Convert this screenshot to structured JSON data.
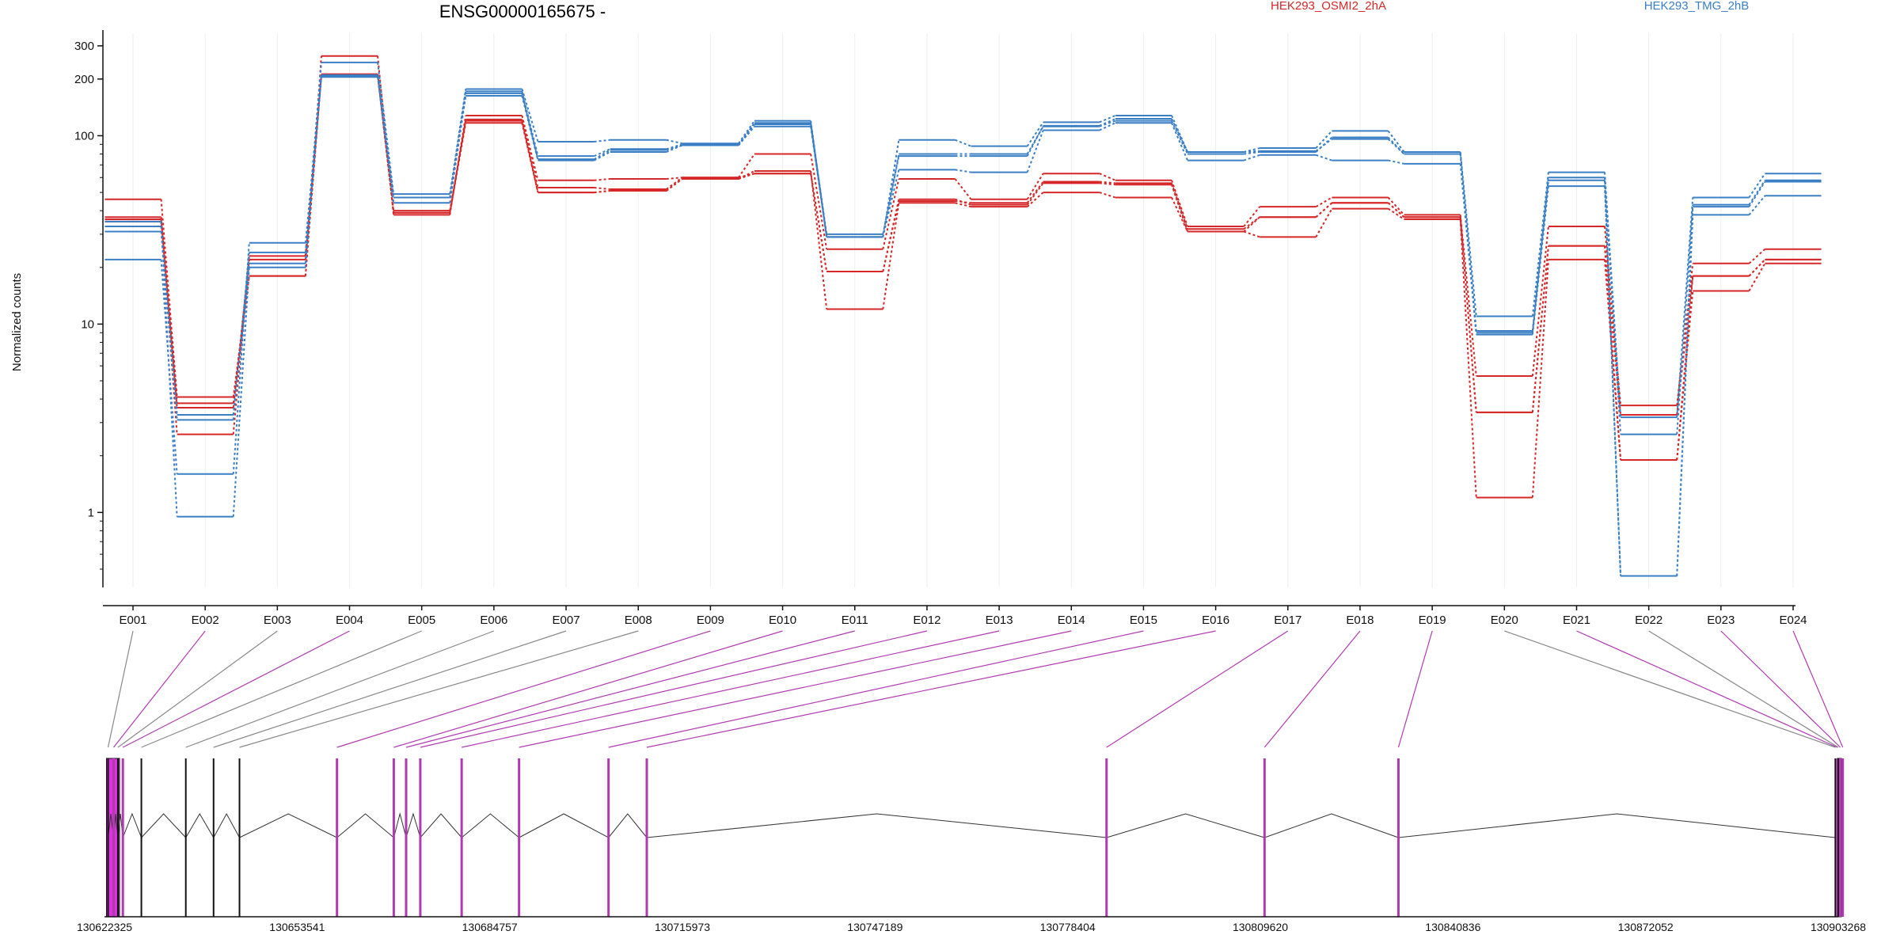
{
  "chart_data": {
    "type": "line",
    "title": "ENSG00000165675 -",
    "ylabel": "Normalized counts",
    "y_scale": "log",
    "ylim": [
      0.4,
      350
    ],
    "y_ticks": [
      {
        "value": 1,
        "label": "1"
      },
      {
        "value": 10,
        "label": "10"
      },
      {
        "value": 100,
        "label": "100"
      },
      {
        "value": 200,
        "label": "200"
      },
      {
        "value": 300,
        "label": "300"
      }
    ],
    "categories": [
      "E001",
      "E002",
      "E003",
      "E004",
      "E005",
      "E006",
      "E007",
      "E008",
      "E009",
      "E010",
      "E011",
      "E012",
      "E013",
      "E014",
      "E015",
      "E016",
      "E017",
      "E018",
      "E019",
      "E020",
      "E021",
      "E022",
      "E023",
      "E024"
    ],
    "legend": [
      {
        "label": "HEK293_OSMI2_2hA",
        "color": "#d62728"
      },
      {
        "label": "HEK293_TMG_2hB",
        "color": "#3a7fc4"
      }
    ],
    "grid": "vertical",
    "series": [
      {
        "group": "HEK293_OSMI2_2hA",
        "color": "#d62728",
        "values": [
          46,
          4.1,
          18,
          265,
          38,
          128,
          58,
          59,
          60,
          80,
          25,
          59,
          46,
          63,
          58,
          33,
          42,
          47,
          38,
          5.3,
          33,
          3.7,
          21,
          25
        ]
      },
      {
        "group": "HEK293_OSMI2_2hA",
        "color": "#d62728",
        "values": [
          37,
          3.8,
          18,
          212,
          39,
          122,
          53,
          52,
          60,
          63,
          19,
          45,
          44,
          57,
          56,
          32,
          37,
          44,
          37,
          3.4,
          26,
          3.3,
          18,
          22
        ]
      },
      {
        "group": "HEK293_OSMI2_2hA",
        "color": "#d62728",
        "values": [
          36,
          3.6,
          22,
          212,
          39,
          117,
          50,
          51,
          59,
          65,
          12,
          44,
          42,
          50,
          47,
          31,
          29,
          41,
          36,
          1.2,
          22,
          1.9,
          15,
          21
        ]
      },
      {
        "group": "HEK293_OSMI2_2hA",
        "color": "#d62728",
        "values": [
          35,
          2.6,
          23,
          208,
          40,
          120,
          50,
          51,
          59,
          63,
          19,
          46,
          43,
          56,
          55,
          31,
          37,
          44,
          37,
          3.4,
          26,
          1.9,
          18,
          22
        ]
      },
      {
        "group": "HEK293_TMG_2hB",
        "color": "#3a7fc4",
        "values": [
          31,
          3.1,
          24,
          245,
          49,
          177,
          93,
          95,
          91,
          120,
          29,
          95,
          88,
          118,
          128,
          82,
          86,
          106,
          82,
          11,
          64,
          3.2,
          47,
          63
        ]
      },
      {
        "group": "HEK293_TMG_2hB",
        "color": "#3a7fc4",
        "values": [
          22,
          1.6,
          27,
          208,
          47,
          168,
          75,
          84,
          89,
          117,
          30,
          78,
          78,
          113,
          123,
          82,
          83,
          96,
          80,
          9,
          60,
          2.6,
          42,
          57
        ]
      },
      {
        "group": "HEK293_TMG_2hB",
        "color": "#3a7fc4",
        "values": [
          35,
          0.95,
          20,
          205,
          44,
          163,
          74,
          82,
          89,
          112,
          29,
          66,
          64,
          107,
          117,
          74,
          79,
          74,
          71,
          8.8,
          54,
          0.46,
          38,
          48
        ]
      },
      {
        "group": "HEK293_TMG_2hB",
        "color": "#3a7fc4",
        "values": [
          33,
          3.3,
          21,
          210,
          47,
          172,
          78,
          85,
          90,
          115,
          29,
          80,
          80,
          112,
          120,
          80,
          82,
          98,
          80,
          9.2,
          58,
          0.46,
          43,
          58
        ]
      }
    ],
    "exon_highlight": [
      false,
      true,
      false,
      true,
      false,
      false,
      false,
      false,
      true,
      true,
      true,
      true,
      true,
      true,
      true,
      true,
      true,
      true,
      true,
      false,
      true,
      false,
      true,
      true
    ],
    "genomic_axis": {
      "start": 130622325,
      "end": 130903268,
      "tick_labels": [
        "130622325",
        "130653541",
        "130684757",
        "130715973",
        "130747189",
        "130778404",
        "130809620",
        "130840836",
        "130872052",
        "130903268"
      ]
    },
    "exon_positions": [
      130622900,
      130623800,
      130624500,
      130625300,
      130628300,
      130635500,
      130640000,
      130644200,
      130660000,
      130669200,
      130671200,
      130673500,
      130680200,
      130689500,
      130704000,
      130710200,
      130784700,
      130810300,
      130832000,
      130902800,
      130903100,
      130903268,
      130903600,
      130904000
    ],
    "highlight_color": "#b03ab0",
    "exon_fill_color": "#dd33dd"
  }
}
